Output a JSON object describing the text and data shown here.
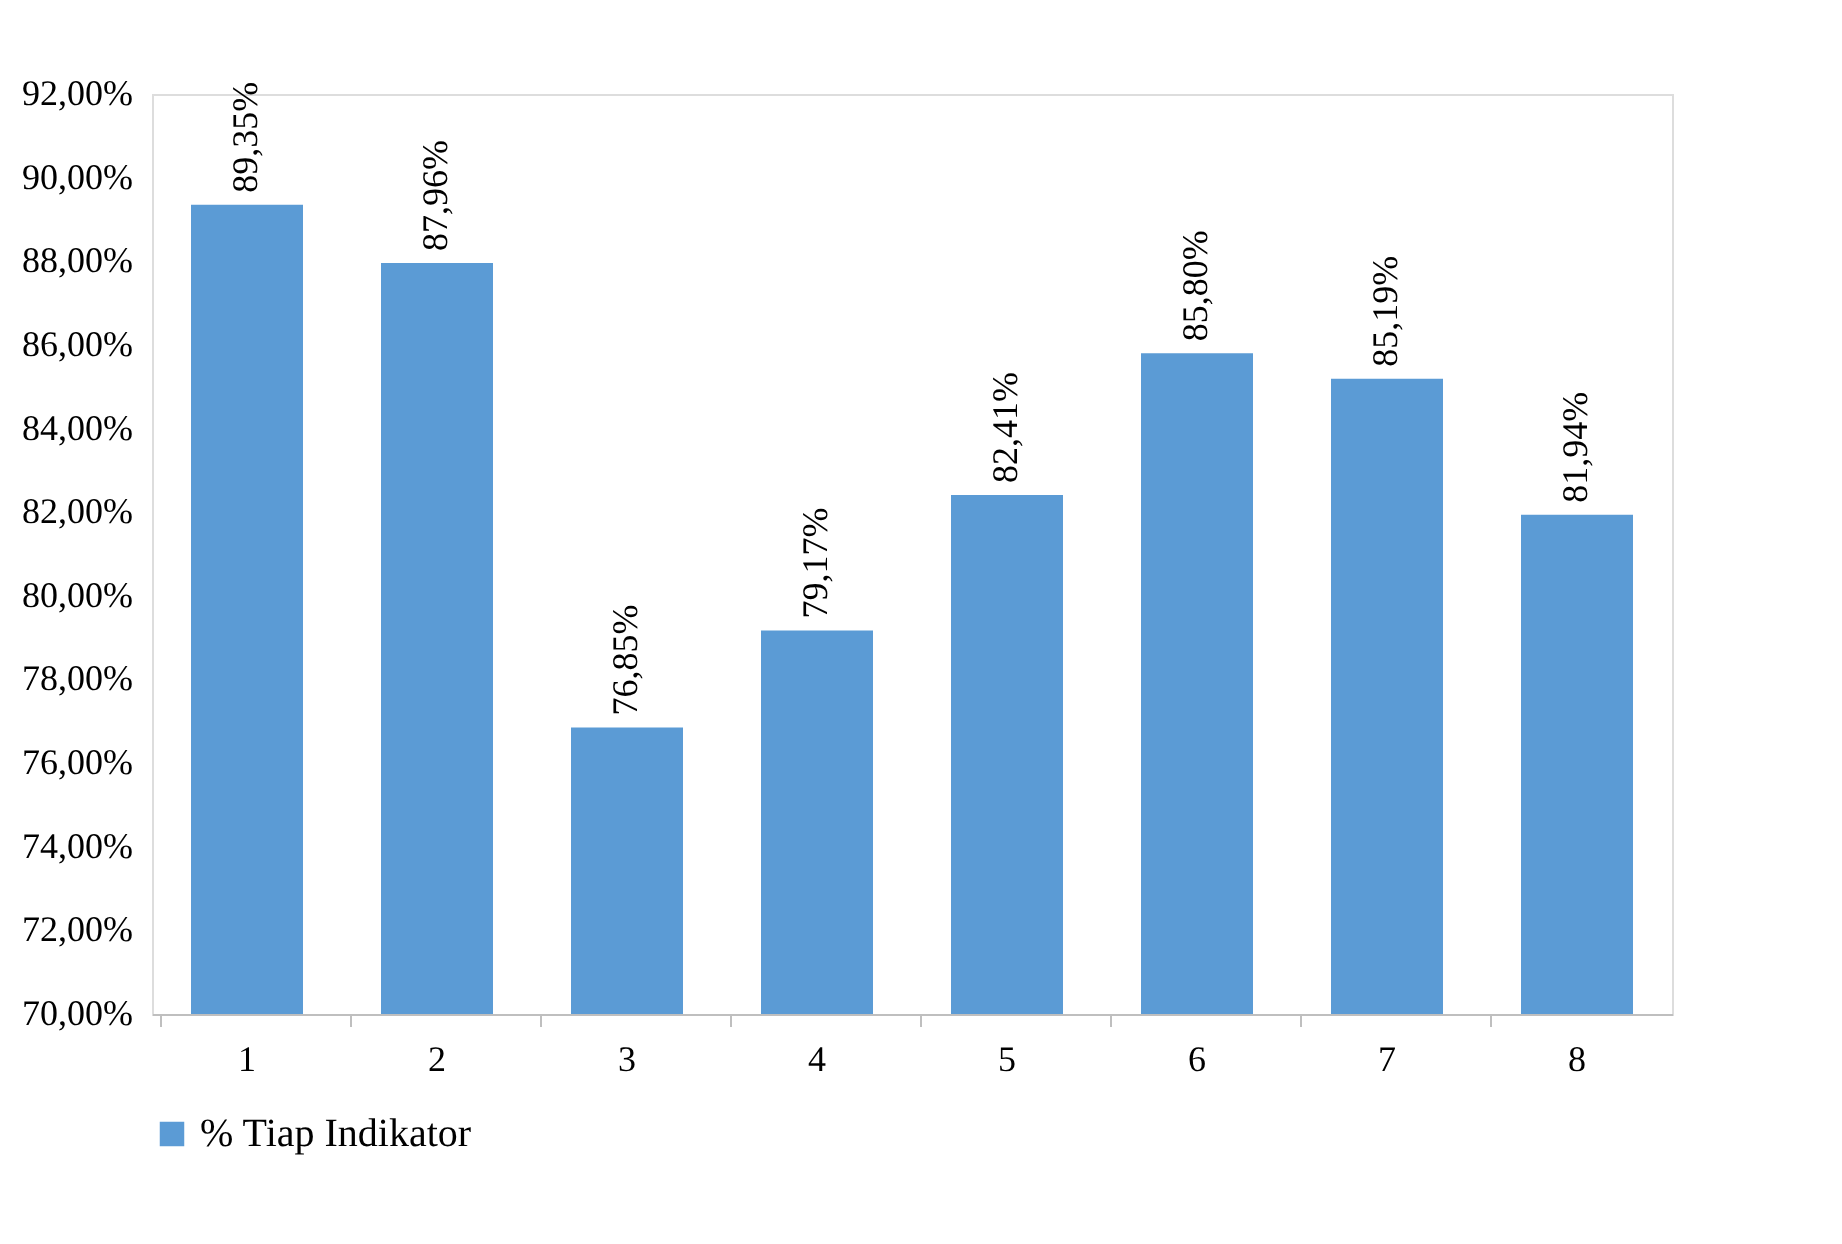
{
  "chart_data": {
    "type": "bar",
    "categories": [
      "1",
      "2",
      "3",
      "4",
      "5",
      "6",
      "7",
      "8"
    ],
    "series": [
      {
        "name": "% Tiap Indikator",
        "color": "#5b9bd5",
        "values": [
          89.35,
          87.96,
          76.85,
          79.17,
          82.41,
          85.8,
          85.19,
          81.94
        ],
        "value_labels": [
          "89,35%",
          "87,96%",
          "76,85%",
          "79,17%",
          "82,41%",
          "85,80%",
          "85,19%",
          "81,94%"
        ]
      }
    ],
    "ylim": [
      70,
      92
    ],
    "yticks": [
      {
        "value": 70,
        "label": "70,00%"
      },
      {
        "value": 72,
        "label": "72,00%"
      },
      {
        "value": 74,
        "label": "74,00%"
      },
      {
        "value": 76,
        "label": "76,00%"
      },
      {
        "value": 78,
        "label": "78,00%"
      },
      {
        "value": 80,
        "label": "80,00%"
      },
      {
        "value": 82,
        "label": "82,00%"
      },
      {
        "value": 84,
        "label": "84,00%"
      },
      {
        "value": 86,
        "label": "86,00%"
      },
      {
        "value": 88,
        "label": "88,00%"
      },
      {
        "value": 90,
        "label": "90,00%"
      },
      {
        "value": 92,
        "label": "92,00%"
      }
    ],
    "grid": false,
    "legend": "bottom"
  }
}
